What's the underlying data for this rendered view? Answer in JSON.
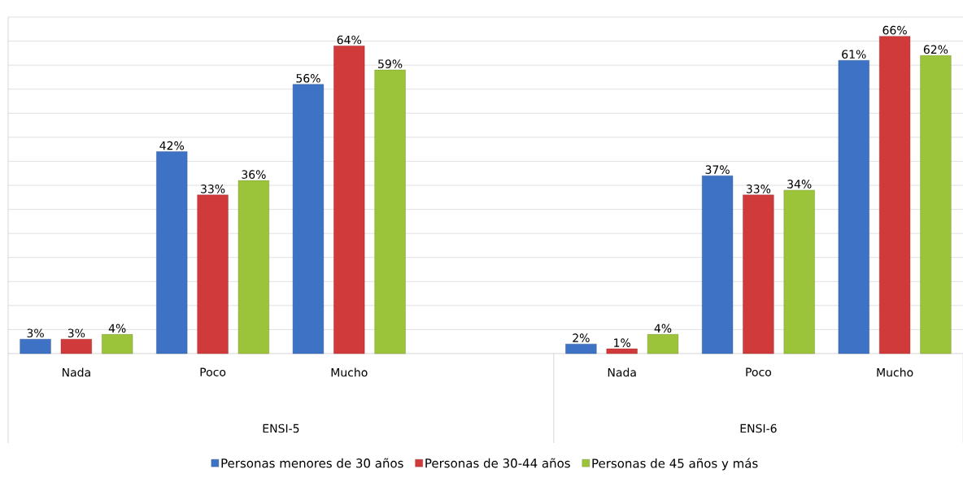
{
  "chart_data": {
    "type": "bar",
    "categories": [
      "Nada",
      "Poco",
      "Mucho",
      null,
      "Nada",
      "Poco",
      "Mucho"
    ],
    "series": [
      {
        "name": "Personas menores de 30 años",
        "color": "#3d72c4",
        "values": [
          3,
          42,
          56,
          null,
          2,
          37,
          61
        ],
        "value_labels": [
          "3%",
          "42%",
          "56%",
          null,
          "2%",
          "37%",
          "61%"
        ]
      },
      {
        "name": "Personas de 30-44 años",
        "color": "#d03a3a",
        "values": [
          3,
          33,
          64,
          null,
          1,
          33,
          66
        ],
        "value_labels": [
          "3%",
          "33%",
          "64%",
          null,
          "1%",
          "33%",
          "66%"
        ]
      },
      {
        "name": "Personas de 45 años y más",
        "color": "#9cc43a",
        "values": [
          4,
          36,
          59,
          null,
          4,
          34,
          62
        ],
        "value_labels": [
          "4%",
          "36%",
          "59%",
          null,
          "4%",
          "34%",
          "62%"
        ]
      }
    ],
    "ylim": [
      0,
      70
    ],
    "tick_labels": "x",
    "grid": "y",
    "legend": "bottom",
    "annotations": [
      "ENSI-5",
      "ENSI-6"
    ]
  }
}
